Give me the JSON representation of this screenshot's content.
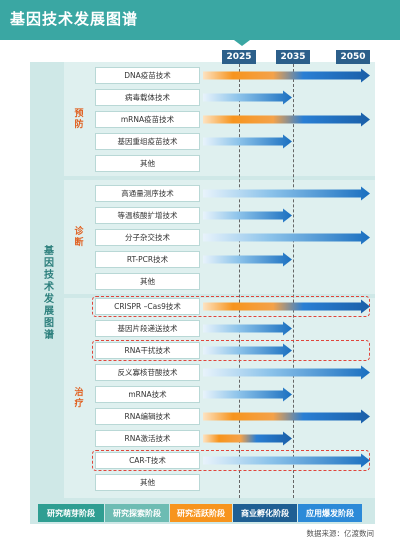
{
  "title": "基因技术发展图谱",
  "left_label": "基因技术发展图谱",
  "source": "数据来源：亿渡数间",
  "colors": {
    "banner": "#3aa7a3",
    "panel": "#cfe8e7",
    "phase_1": "#2f9e92",
    "phase_2": "#6dbcb3",
    "phase_3": "#f7941d",
    "phase_4": "#1f5f93",
    "phase_5": "#2c8ad8",
    "highlight": "#e0443a"
  },
  "chart_data": {
    "type": "timeline",
    "x_ticks": [
      "2025",
      "2035",
      "2050"
    ],
    "phases": [
      {
        "name": "研究萌芽阶段"
      },
      {
        "name": "研究探索阶段"
      },
      {
        "name": "研究活跃阶段"
      },
      {
        "name": "商业孵化阶段"
      },
      {
        "name": "应用爆发阶段"
      }
    ],
    "sections": [
      {
        "name": "预防",
        "technologies": [
          {
            "name": "DNA疫苗技术",
            "reach": "2050",
            "start_stage": "研究活跃阶段",
            "highlight": false
          },
          {
            "name": "病毒载体技术",
            "reach": "2035",
            "start_stage": "研究探索阶段",
            "highlight": false
          },
          {
            "name": "mRNA疫苗技术",
            "reach": "2050",
            "start_stage": "研究活跃阶段",
            "highlight": false
          },
          {
            "name": "基因重组疫苗技术",
            "reach": "2035",
            "start_stage": "研究探索阶段",
            "highlight": false
          },
          {
            "name": "其他",
            "reach": null,
            "start_stage": null,
            "highlight": false
          }
        ]
      },
      {
        "name": "诊断",
        "technologies": [
          {
            "name": "高通量测序技术",
            "reach": "2050",
            "start_stage": "研究探索阶段",
            "highlight": false
          },
          {
            "name": "等温核酸扩增技术",
            "reach": "2035",
            "start_stage": "研究探索阶段",
            "highlight": false
          },
          {
            "name": "分子杂交技术",
            "reach": "2050",
            "start_stage": "研究探索阶段",
            "highlight": false
          },
          {
            "name": "RT-PCR技术",
            "reach": "2035",
            "start_stage": "研究探索阶段",
            "highlight": false
          },
          {
            "name": "其他",
            "reach": null,
            "start_stage": null,
            "highlight": false
          }
        ]
      },
      {
        "name": "治疗",
        "technologies": [
          {
            "name": "CRISPR –Cas9技术",
            "reach": "2050",
            "start_stage": "研究活跃阶段",
            "highlight": true
          },
          {
            "name": "基因片段递送技术",
            "reach": "2035",
            "start_stage": "研究探索阶段",
            "highlight": false
          },
          {
            "name": "RNA干扰技术",
            "reach": "2035",
            "start_stage": "研究探索阶段",
            "highlight": true
          },
          {
            "name": "反义寡核苷酸技术",
            "reach": "2050",
            "start_stage": "研究探索阶段",
            "highlight": false
          },
          {
            "name": "mRNA技术",
            "reach": "2035",
            "start_stage": "研究探索阶段",
            "highlight": false
          },
          {
            "name": "RNA编辑技术",
            "reach": "2050",
            "start_stage": "研究活跃阶段",
            "highlight": false
          },
          {
            "name": "RNA激活技术",
            "reach": "2035",
            "start_stage": "研究活跃阶段",
            "highlight": false
          },
          {
            "name": "CAR-T技术",
            "reach": "2050",
            "start_stage": "研究探索阶段",
            "highlight": true
          },
          {
            "name": "其他",
            "reach": null,
            "start_stage": null,
            "highlight": false
          }
        ]
      }
    ]
  }
}
